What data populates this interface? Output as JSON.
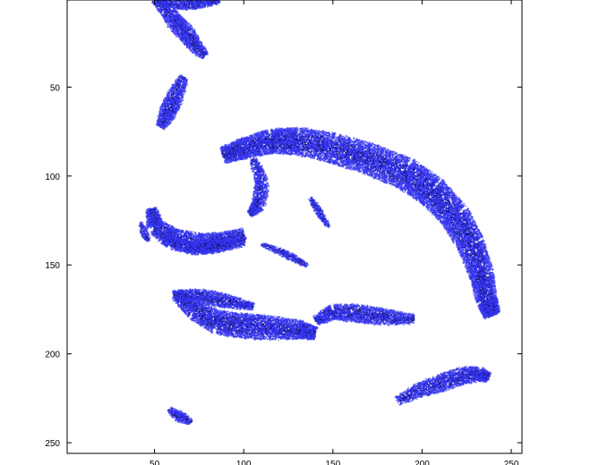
{
  "chart_data": {
    "type": "scatter",
    "title": "",
    "xlabel": "",
    "ylabel": "",
    "xlim": [
      1,
      256
    ],
    "ylim": [
      1,
      256
    ],
    "y_axis_reversed": true,
    "grid": false,
    "x_ticks": [
      "50",
      "100",
      "150",
      "200",
      "250"
    ],
    "y_ticks": [
      "50",
      "100",
      "150",
      "200",
      "250"
    ],
    "x_tick_values": [
      50,
      100,
      150,
      200,
      250
    ],
    "y_tick_values": [
      50,
      100,
      150,
      200,
      250
    ],
    "marker_color": "#3333ee",
    "shade_color": "#11115a",
    "regions": [
      {
        "name": "top-left-cluster",
        "centerline": [
          [
            50,
            0
          ],
          [
            57,
            7
          ],
          [
            62,
            14
          ],
          [
            68,
            20
          ],
          [
            72,
            26
          ],
          [
            78,
            32
          ]
        ],
        "width": 5
      },
      {
        "name": "top-left-cluster-upper",
        "centerline": [
          [
            52,
            2
          ],
          [
            62,
            3
          ],
          [
            70,
            3
          ],
          [
            78,
            2
          ],
          [
            86,
            1
          ]
        ],
        "width": 3
      },
      {
        "name": "upper-left-stroke",
        "centerline": [
          [
            66,
            44
          ],
          [
            61,
            55
          ],
          [
            57,
            64
          ],
          [
            53,
            72
          ]
        ],
        "width": 5
      },
      {
        "name": "main-arc",
        "centerline": [
          [
            88,
            88
          ],
          [
            100,
            84
          ],
          [
            115,
            80
          ],
          [
            130,
            80
          ],
          [
            150,
            84
          ],
          [
            170,
            90
          ],
          [
            190,
            98
          ],
          [
            205,
            108
          ],
          [
            218,
            122
          ],
          [
            227,
            138
          ],
          [
            233,
            155
          ],
          [
            236,
            170
          ],
          [
            239,
            178
          ]
        ],
        "width": 9
      },
      {
        "name": "arc-inner-stroke",
        "centerline": [
          [
            105,
            90
          ],
          [
            110,
            103
          ],
          [
            108,
            116
          ],
          [
            103,
            121
          ]
        ],
        "width": 4
      },
      {
        "name": "left-curve",
        "centerline": [
          [
            48,
            118
          ],
          [
            50,
            128
          ],
          [
            60,
            135
          ],
          [
            75,
            138
          ],
          [
            88,
            136
          ],
          [
            100,
            132
          ]
        ],
        "width": 6
      },
      {
        "name": "mid-left-horizontal",
        "centerline": [
          [
            55,
            135
          ],
          [
            70,
            140
          ],
          [
            85,
            139
          ],
          [
            100,
            137
          ]
        ],
        "width": 4
      },
      {
        "name": "middle-small-stroke",
        "centerline": [
          [
            137,
            112
          ],
          [
            142,
            120
          ],
          [
            147,
            128
          ]
        ],
        "width": 2
      },
      {
        "name": "middle-faint-stroke",
        "centerline": [
          [
            110,
            138
          ],
          [
            120,
            142
          ],
          [
            128,
            146
          ],
          [
            135,
            150
          ]
        ],
        "width": 2
      },
      {
        "name": "lower-band-left",
        "centerline": [
          [
            62,
            166
          ],
          [
            72,
            175
          ],
          [
            85,
            182
          ],
          [
            100,
            184
          ],
          [
            115,
            185
          ],
          [
            130,
            186
          ],
          [
            140,
            188
          ]
        ],
        "width": 7
      },
      {
        "name": "lower-band-right",
        "centerline": [
          [
            140,
            181
          ],
          [
            150,
            176
          ],
          [
            165,
            177
          ],
          [
            180,
            179
          ],
          [
            195,
            180
          ]
        ],
        "width": 5
      },
      {
        "name": "lower-band-top",
        "centerline": [
          [
            60,
            166
          ],
          [
            75,
            167
          ],
          [
            90,
            170
          ],
          [
            105,
            173
          ]
        ],
        "width": 4
      },
      {
        "name": "bottom-right-stroke",
        "centerline": [
          [
            186,
            226
          ],
          [
            198,
            220
          ],
          [
            210,
            216
          ],
          [
            222,
            212
          ],
          [
            232,
            211
          ],
          [
            237,
            213
          ]
        ],
        "width": 5
      },
      {
        "name": "bottom-left-blob",
        "centerline": [
          [
            58,
            231
          ],
          [
            62,
            234
          ],
          [
            66,
            236
          ],
          [
            70,
            238
          ]
        ],
        "width": 3
      },
      {
        "name": "left-dots",
        "centerline": [
          [
            42,
            126
          ],
          [
            44,
            132
          ],
          [
            46,
            136
          ]
        ],
        "width": 2
      }
    ]
  }
}
